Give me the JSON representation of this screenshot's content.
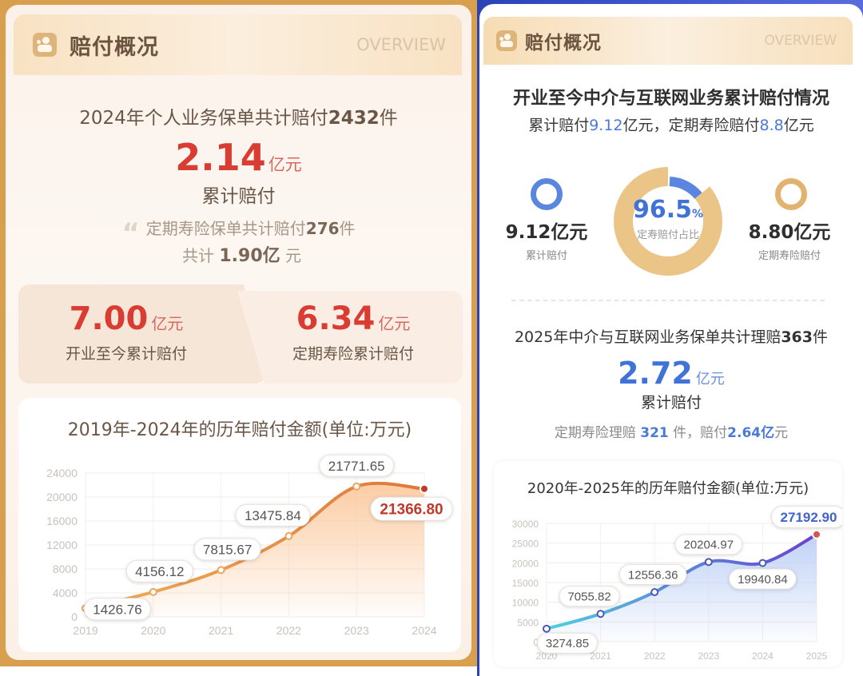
{
  "left": {
    "header": {
      "title": "赔付概况",
      "overview": "OVERVIEW",
      "icon": "claims-people-icon"
    },
    "summary": {
      "prefix": "2024年个人业务保单共计赔付",
      "count": "2432",
      "suffix": "件",
      "amount": "2.14",
      "amount_unit": "亿元",
      "amount_label": "累计赔付"
    },
    "quote": {
      "mark": "“",
      "line1_prefix": "定期寿险保单共计赔付",
      "line1_count": "276",
      "line1_suffix": "件",
      "line2_prefix": "共计",
      "line2_value": "1.90亿",
      "line2_suffix": "元"
    },
    "stats": [
      {
        "value": "7.00",
        "unit": "亿元",
        "label": "开业至今累计赔付"
      },
      {
        "value": "6.34",
        "unit": "亿元",
        "label": "定期寿险累计赔付"
      }
    ],
    "chart_title": "2019年-2024年的历年赔付金额(单位:万元)"
  },
  "right": {
    "header": {
      "title": "赔付概况",
      "overview": "OVERVIEW",
      "icon": "claims-people-icon"
    },
    "headline": "开业至今中介与互联网业务累计赔付情况",
    "subline": {
      "p1": "累计赔付",
      "v1": "9.12",
      "p2": "亿元，定期寿险赔付",
      "v2": "8.8",
      "p3": "亿元"
    },
    "left_stat": {
      "value": "9.12亿元",
      "label": "累计赔付"
    },
    "right_stat": {
      "value": "8.80亿元",
      "label": "定期寿险赔付"
    },
    "donut": {
      "percent": "96.5",
      "percent_sign": "%",
      "label": "定寿赔付占比",
      "blue": "#5a86e0",
      "gold": "#ebc487"
    },
    "summary": {
      "prefix": "2025年中介与互联网业务保单共计理赔",
      "count": "363",
      "suffix": "件",
      "amount": "2.72",
      "amount_unit": "亿元",
      "amount_label": "累计赔付"
    },
    "note": {
      "p1": "定期寿险理赔 ",
      "count": "321",
      "p2": " 件，赔付",
      "value": "2.64亿",
      "p3": "元"
    },
    "chart_title": "2020年-2025年的历年赔付金额(单位:万元)"
  },
  "colors": {
    "left_accent": "#d83c32",
    "left_frame": "#d8a04e",
    "right_accent": "#3f73d8",
    "right_frame": "#2a44b8"
  },
  "chart_data": [
    {
      "type": "area",
      "title": "2019年-2024年的历年赔付金额(单位:万元)",
      "categories": [
        "2019",
        "2020",
        "2021",
        "2022",
        "2023",
        "2024"
      ],
      "values": [
        1426.76,
        4156.12,
        7815.67,
        13475.84,
        21771.65,
        21366.8
      ],
      "labels": [
        "1426.76",
        "4156.12",
        "7815.67",
        "13475.84",
        "21771.65",
        "21366.80"
      ],
      "yticks": [
        "0",
        "4000",
        "8000",
        "12000",
        "16000",
        "20000",
        "24000"
      ],
      "ylim": [
        0,
        24000
      ],
      "xlabel": "",
      "ylabel": "",
      "grid": true,
      "line_color": "#e58a3c",
      "highlight_color": "#c0392b"
    },
    {
      "type": "area",
      "title": "2020年-2025年的历年赔付金额(单位:万元)",
      "categories": [
        "2020",
        "2021",
        "2022",
        "2023",
        "2024",
        "2025"
      ],
      "values": [
        3274.85,
        7055.82,
        12556.36,
        20204.97,
        19940.84,
        27192.9
      ],
      "labels": [
        "3274.85",
        "7055.82",
        "12556.36",
        "20204.97",
        "19940.84",
        "27192.90"
      ],
      "yticks": [
        "0",
        "5000",
        "10000",
        "15000",
        "20000",
        "25000",
        "30000"
      ],
      "ylim": [
        0,
        30000
      ],
      "xlabel": "",
      "ylabel": "",
      "grid": true,
      "line_color_start": "#4fd0e0",
      "line_color_end": "#6a3fd0",
      "highlight_color": "#d9534f"
    }
  ]
}
